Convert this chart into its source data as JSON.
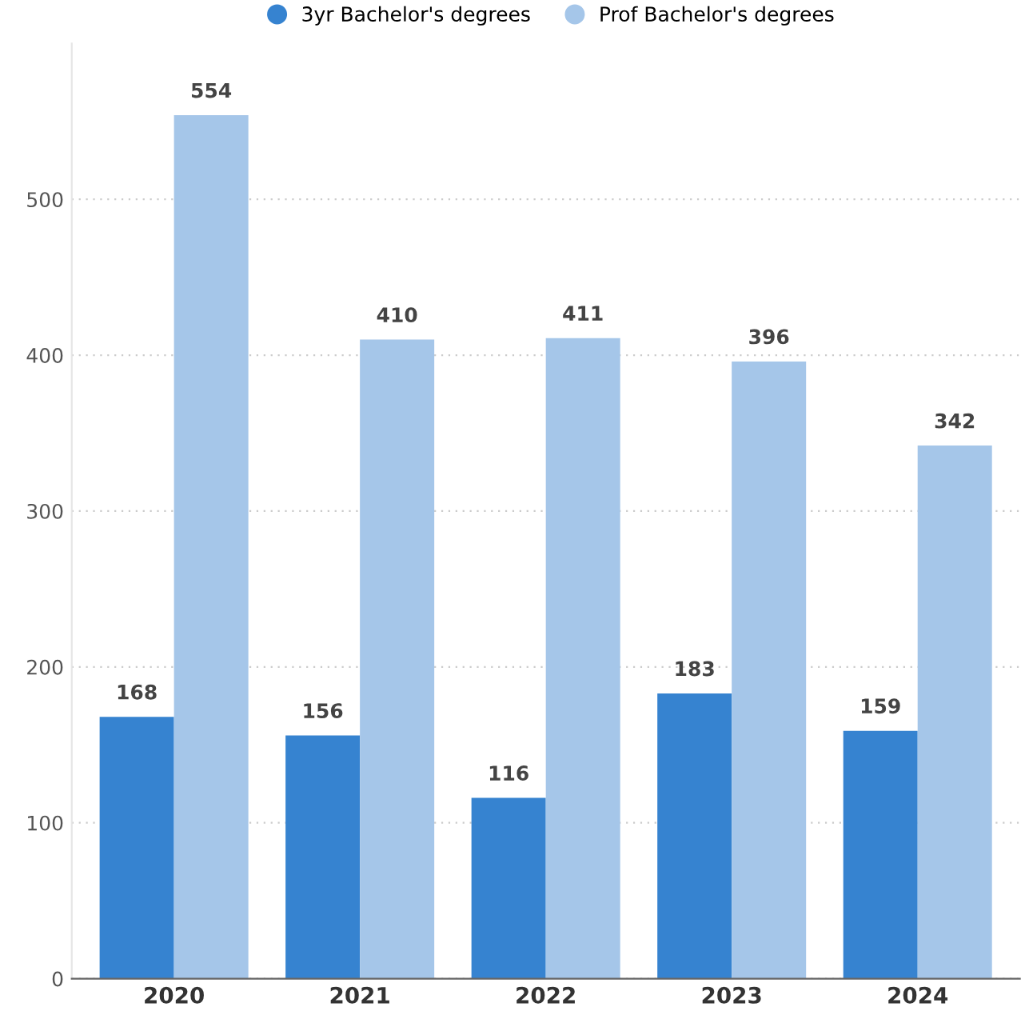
{
  "chart_data": {
    "type": "bar",
    "categories": [
      "2020",
      "2021",
      "2022",
      "2023",
      "2024"
    ],
    "series": [
      {
        "name": "3yr Bachelor's degrees",
        "color": "#3683d0",
        "values": [
          168,
          156,
          116,
          183,
          159
        ]
      },
      {
        "name": "Prof Bachelor's degrees",
        "color": "#a5c6e9",
        "values": [
          554,
          410,
          411,
          396,
          342
        ]
      }
    ],
    "ylim": [
      0,
      600
    ],
    "yticks": [
      0,
      100,
      200,
      300,
      400,
      500
    ],
    "grid": "y",
    "legend": "top",
    "data_labels": true
  }
}
